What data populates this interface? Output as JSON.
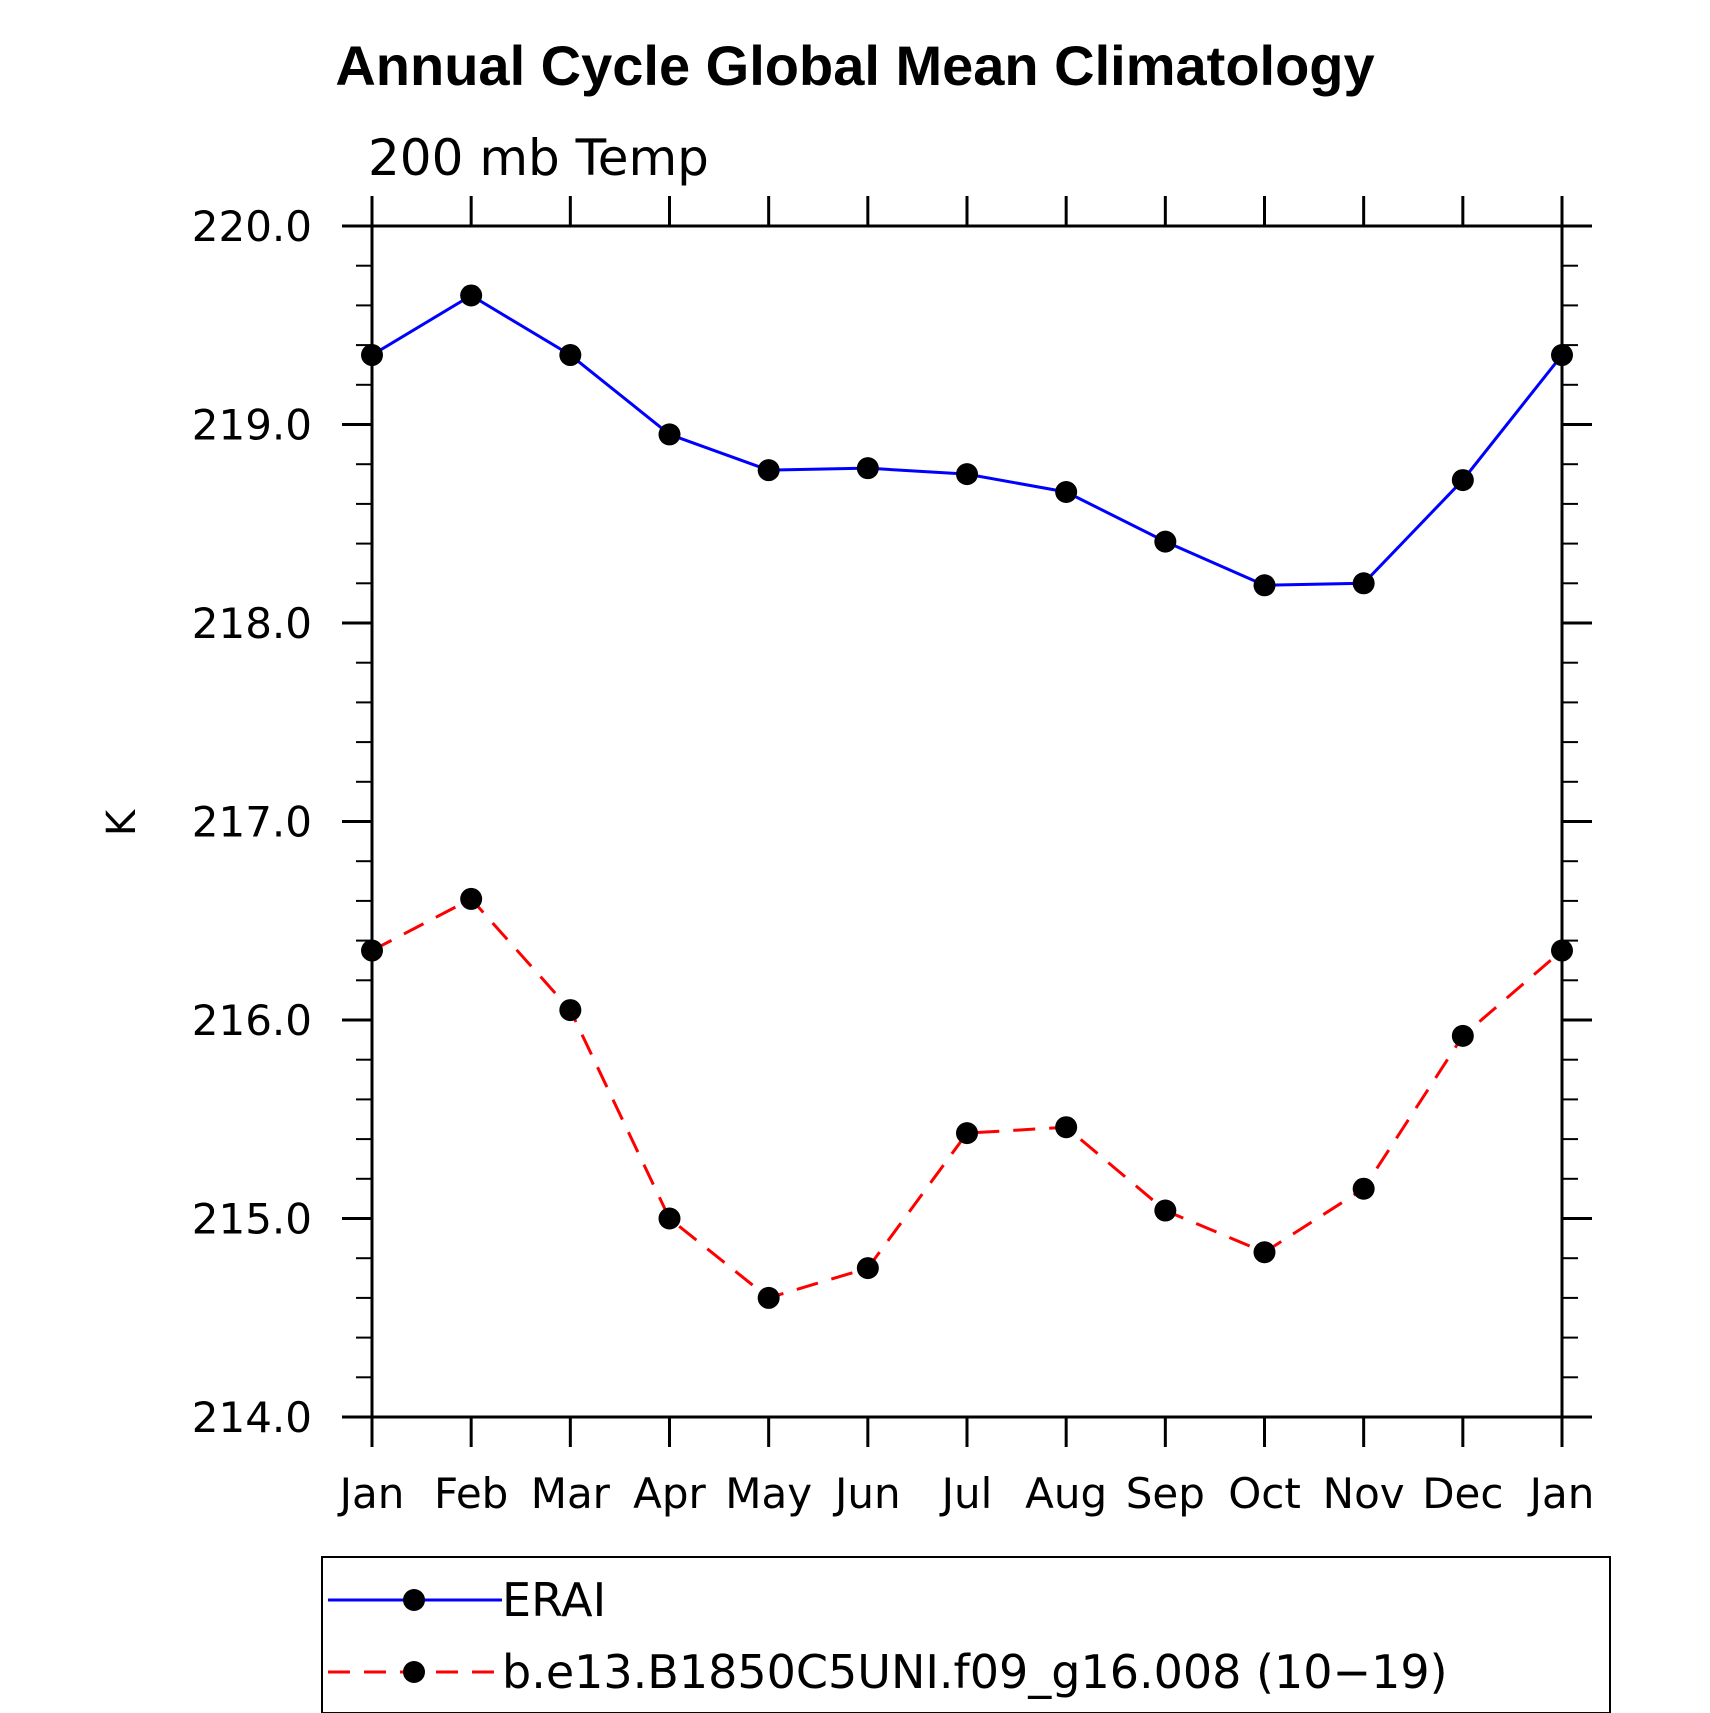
{
  "chart_data": {
    "type": "line",
    "title": "Annual Cycle Global Mean Climatology",
    "subtitle": "200 mb Temp",
    "xlabel": "",
    "ylabel": "K",
    "categories": [
      "Jan",
      "Feb",
      "Mar",
      "Apr",
      "May",
      "Jun",
      "Jul",
      "Aug",
      "Sep",
      "Oct",
      "Nov",
      "Dec",
      "Jan"
    ],
    "ylim": [
      214.0,
      220.0
    ],
    "yticks": [
      "214.0",
      "215.0",
      "216.0",
      "217.0",
      "218.0",
      "219.0",
      "220.0"
    ],
    "yminor_step": 0.2,
    "series": [
      {
        "name": "ERAI",
        "color": "#0000ff",
        "dash": "solid",
        "marker": "circle",
        "values": [
          219.35,
          219.65,
          219.35,
          218.95,
          218.77,
          218.78,
          218.75,
          218.66,
          218.41,
          218.19,
          218.2,
          218.72,
          219.35
        ]
      },
      {
        "name": "b.e13.B1850C5UNI.f09_g16.008 (10−19)",
        "color": "#ff0000",
        "dash": "dashed",
        "marker": "circle",
        "values": [
          216.35,
          216.61,
          216.05,
          215.0,
          214.6,
          214.75,
          215.43,
          215.46,
          215.04,
          214.83,
          215.15,
          215.92,
          216.35
        ]
      }
    ],
    "legend": {
      "position": "bottom"
    }
  }
}
